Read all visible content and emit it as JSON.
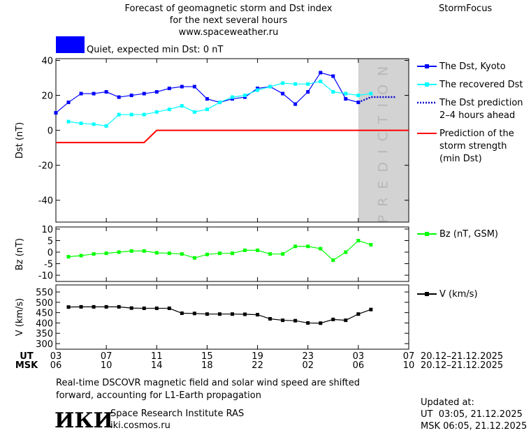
{
  "header": {
    "title_lines": [
      "Forecast of geomagnetic storm and Dst index",
      "for the next several hours",
      "www.spaceweather.ru"
    ],
    "brand": "StormFocus",
    "status": "Quiet, expected min Dst: 0 nT",
    "status_color": "#0000ff"
  },
  "chart_data": [
    {
      "type": "line",
      "ylabel": "Dst (nT)",
      "xlim": [
        0,
        28
      ],
      "ylim": [
        -52.5,
        41
      ],
      "yticks": [
        -40,
        -20,
        0,
        20,
        40
      ],
      "prediction_region": [
        24,
        28
      ],
      "prediction_label": "PREDICTION",
      "series": [
        {
          "name": "The Dst, Kyoto",
          "color": "#0000ff",
          "markers": true,
          "dotted": false,
          "x": [
            0,
            1,
            2,
            3,
            4,
            5,
            6,
            7,
            8,
            9,
            10,
            11,
            12,
            13,
            14,
            15,
            16,
            17,
            18,
            19,
            20,
            21,
            22,
            23,
            24
          ],
          "values": [
            10,
            16,
            21,
            21,
            22,
            19,
            20,
            21,
            22,
            24,
            25,
            25,
            18,
            16,
            18,
            19,
            24,
            25,
            21,
            15,
            22,
            33,
            31,
            18,
            16
          ]
        },
        {
          "name": "The recovered Dst",
          "color": "#00ffff",
          "markers": true,
          "dotted": false,
          "x": [
            1,
            2,
            3,
            4,
            5,
            6,
            7,
            8,
            9,
            10,
            11,
            12,
            13,
            14,
            15,
            16,
            17,
            18,
            19,
            20,
            21,
            22,
            23,
            24,
            25
          ],
          "values": [
            5,
            4,
            3.5,
            2.5,
            9,
            9,
            9,
            10.5,
            12,
            14,
            10.5,
            12,
            16,
            19,
            20,
            23,
            25,
            27,
            26.5,
            26.5,
            28,
            22,
            21,
            20,
            21
          ]
        },
        {
          "name": "The Dst prediction\n2–4 hours ahead",
          "color": "#0000cc",
          "markers": false,
          "dotted": true,
          "x": [
            24,
            25,
            26,
            27
          ],
          "values": [
            16,
            19,
            19,
            19
          ]
        },
        {
          "name": "Prediction of the\nstorm strength\n(min Dst)",
          "color": "#ff0000",
          "markers": false,
          "dotted": false,
          "x": [
            0,
            7,
            8,
            28
          ],
          "values": [
            -7,
            -7,
            0,
            0
          ]
        }
      ]
    },
    {
      "type": "line",
      "ylabel": "Bz (nT)",
      "xlim": [
        0,
        28
      ],
      "ylim": [
        -12.7,
        10.9
      ],
      "yticks": [
        -10,
        -5,
        0,
        5,
        10
      ],
      "series": [
        {
          "name": "Bz (nT, GSM)",
          "color": "#00ff00",
          "markers": true,
          "dotted": false,
          "x": [
            1,
            2,
            3,
            4,
            5,
            6,
            7,
            8,
            9,
            10,
            11,
            12,
            13,
            14,
            15,
            16,
            17,
            18,
            19,
            20,
            21,
            22,
            23,
            24,
            25
          ],
          "values": [
            -2,
            -1.5,
            -0.8,
            -0.5,
            0,
            0.5,
            0.5,
            -0.3,
            -0.5,
            -0.8,
            -2.5,
            -1,
            -0.5,
            -0.5,
            0.8,
            0.8,
            -0.8,
            -0.8,
            2.5,
            2.5,
            1.5,
            -3.5,
            0,
            5,
            3.2
          ]
        }
      ]
    },
    {
      "type": "line",
      "ylabel": "V (km/s)",
      "xlim": [
        0,
        28
      ],
      "ylim": [
        273,
        584
      ],
      "yticks": [
        300,
        350,
        400,
        450,
        500,
        550
      ],
      "series": [
        {
          "name": "V (km/s)",
          "color": "#000000",
          "markers": true,
          "dotted": false,
          "x": [
            1,
            2,
            3,
            4,
            5,
            6,
            7,
            8,
            9,
            10,
            11,
            12,
            13,
            14,
            15,
            16,
            17,
            18,
            19,
            20,
            21,
            22,
            23,
            24,
            25
          ],
          "values": [
            477,
            478,
            478,
            478,
            478,
            472,
            471,
            471,
            471,
            447,
            446,
            443,
            443,
            443,
            442,
            440,
            420,
            413,
            411,
            400,
            399,
            417,
            413,
            443,
            465
          ]
        }
      ]
    }
  ],
  "time_axis": {
    "ut_label": "UT",
    "msk_label": "MSK",
    "ut_ticks": [
      {
        "value": 0,
        "label": "03"
      },
      {
        "value": 4,
        "label": "07"
      },
      {
        "value": 8,
        "label": "11"
      },
      {
        "value": 12,
        "label": "15"
      },
      {
        "value": 16,
        "label": "19"
      },
      {
        "value": 20,
        "label": "23"
      },
      {
        "value": 24,
        "label": "03"
      },
      {
        "value": 28,
        "label": "07"
      }
    ],
    "msk_ticks": [
      "06",
      "10",
      "14",
      "18",
      "22",
      "02",
      "06",
      "10"
    ],
    "ut_range": "20.12–21.12.2025",
    "msk_range": "20.12–21.12.2025"
  },
  "footer": {
    "note_lines": [
      "Real-time DSCOVR magnetic field and solar wind speed are shifted",
      "forward, accounting for L1-Earth propagation"
    ],
    "logo": "ИКИ",
    "institute": "Space Research Institute RAS",
    "site": "iki.cosmos.ru",
    "updated_label": "Updated at:",
    "updated_ut": "UT  03:05, 21.12.2025",
    "updated_msk": "MSK 06:05, 21.12.2025"
  }
}
